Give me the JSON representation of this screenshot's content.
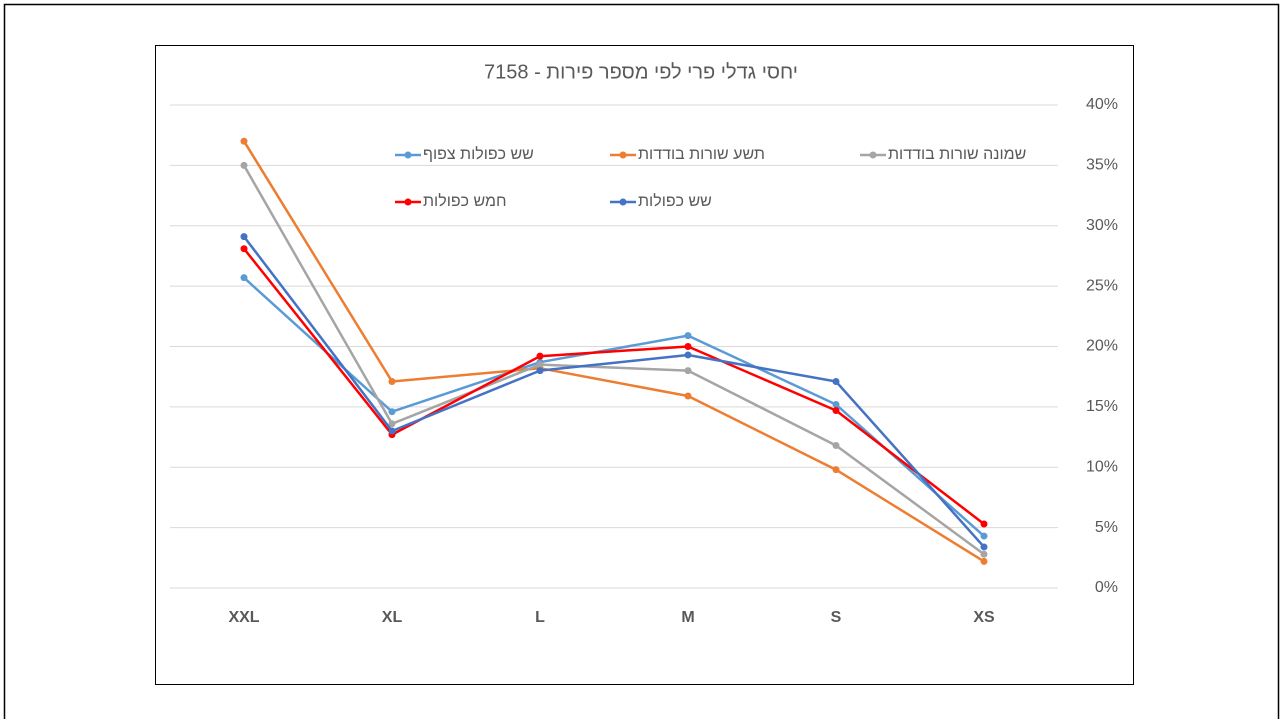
{
  "chart_data": {
    "type": "line",
    "title": "יחסי גדלי פרי לפי מספר פירות - 7158",
    "categories": [
      "XXL",
      "XL",
      "L",
      "M",
      "S",
      "XS"
    ],
    "series": [
      {
        "name": "שש כפולות צפוף",
        "color": "#5b9bd5",
        "values": [
          25.7,
          14.6,
          18.7,
          20.9,
          15.2,
          4.3
        ]
      },
      {
        "name": "תשע שורות בודדות",
        "color": "#ed7d31",
        "values": [
          37.0,
          17.1,
          18.2,
          15.9,
          9.8,
          2.2
        ]
      },
      {
        "name": "שמונה שורות בודדות",
        "color": "#a5a5a5",
        "values": [
          35.0,
          13.6,
          18.5,
          18.0,
          11.8,
          2.8
        ]
      },
      {
        "name": "חמש כפולות",
        "color": "#ff0000",
        "values": [
          28.1,
          12.7,
          19.2,
          20.0,
          14.7,
          5.3
        ]
      },
      {
        "name": "שש כפולות",
        "color": "#4472c4",
        "values": [
          29.1,
          13.0,
          18.0,
          19.3,
          17.1,
          3.4
        ]
      }
    ],
    "ylim": [
      0,
      40
    ],
    "yticks": [
      {
        "value": 0,
        "label": "0%"
      },
      {
        "value": 5,
        "label": "5%"
      },
      {
        "value": 10,
        "label": "10%"
      },
      {
        "value": 15,
        "label": "15%"
      },
      {
        "value": 20,
        "label": "20%"
      },
      {
        "value": 25,
        "label": "25%"
      },
      {
        "value": 30,
        "label": "30%"
      },
      {
        "value": 35,
        "label": "35%"
      },
      {
        "value": 40,
        "label": "40%"
      }
    ],
    "grid": true
  }
}
